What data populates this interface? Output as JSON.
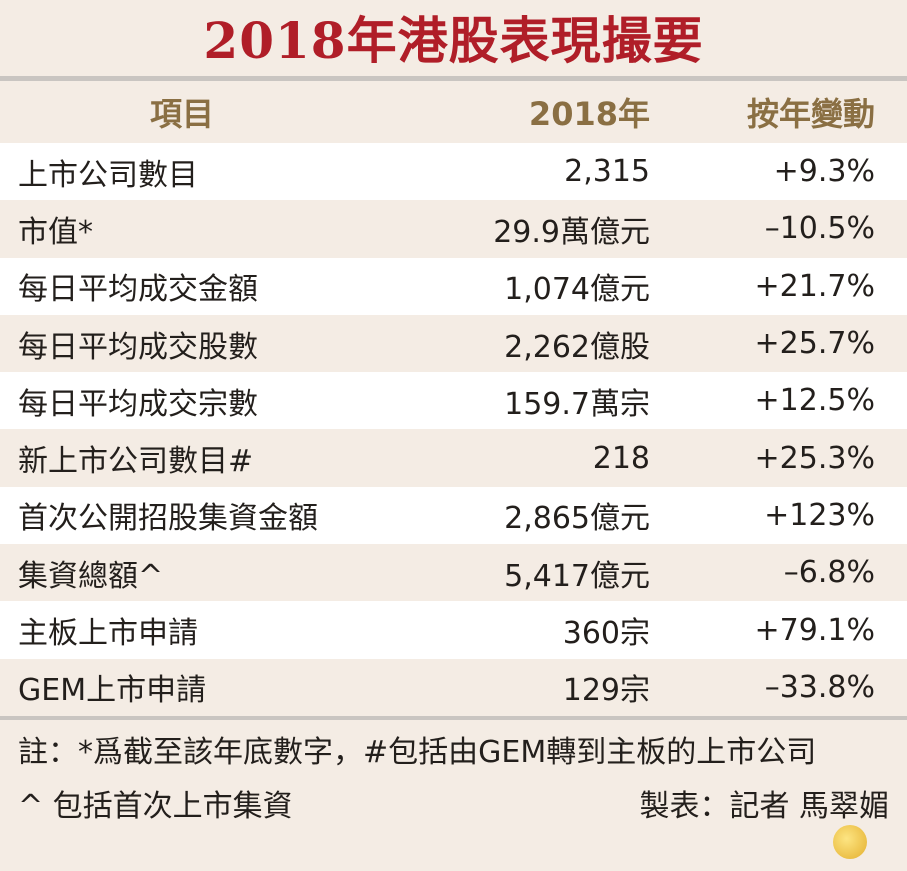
{
  "title": "2018年港股表現撮要",
  "headers": [
    "項目",
    "2018年",
    "按年變動"
  ],
  "rows": [
    {
      "item": "上市公司數目",
      "value": "2,315",
      "change": "+9.3%"
    },
    {
      "item": "市值*",
      "value": "29.9萬億元",
      "change": "–10.5%"
    },
    {
      "item": "每日平均成交金額",
      "value": "1,074億元",
      "change": "+21.7%"
    },
    {
      "item": "每日平均成交股數",
      "value": "2,262億股",
      "change": "+25.7%"
    },
    {
      "item": "每日平均成交宗數",
      "value": "159.7萬宗",
      "change": "+12.5%"
    },
    {
      "item": "新上市公司數目#",
      "value": "218",
      "change": "+25.3%"
    },
    {
      "item": "首次公開招股集資金額",
      "value": "2,865億元",
      "change": "+123%"
    },
    {
      "item": "集資總額^",
      "value": "5,417億元",
      "change": "–6.8%"
    },
    {
      "item": "主板上市申請",
      "value": "360宗",
      "change": "+79.1%"
    },
    {
      "item": "GEM上市申請",
      "value": "129宗",
      "change": "–33.8%"
    }
  ],
  "notes": {
    "line1": "註：*爲截至該年底數字，#包括由GEM轉到主板的上市公司",
    "line2": "^ 包括首次上市集資",
    "credit": "製表：記者 馬翠媚"
  },
  "colors": {
    "title": "#b01e28",
    "header": "#8a6f43",
    "background": "#f4ece4"
  }
}
